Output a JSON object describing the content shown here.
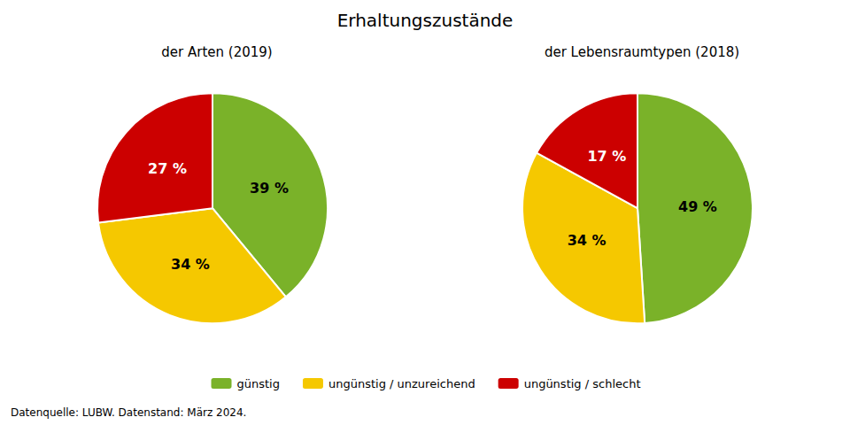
{
  "chart_data": [
    {
      "type": "pie",
      "title": "Erhaltungszustände",
      "subtitle": "der Arten (2019)",
      "categories": [
        "günstig",
        "ungünstig / unzureichend",
        "ungünstig / schlecht"
      ],
      "values": [
        39,
        34,
        27
      ],
      "value_labels": [
        "39 %",
        "34 %",
        "27 %"
      ],
      "colors": [
        "#7ab229",
        "#f5c800",
        "#cc0000"
      ],
      "data_labels": true,
      "legend": "bottom",
      "annotations": [
        "Datenquelle: LUBW. Datenstand: März 2024."
      ]
    },
    {
      "type": "pie",
      "subtitle": "der Lebensraumtypen (2018)",
      "categories": [
        "günstig",
        "ungünstig / unzureichend",
        "ungünstig / schlecht"
      ],
      "values": [
        49,
        34,
        17
      ],
      "value_labels": [
        "49 %",
        "34 %",
        "17 %"
      ],
      "colors": [
        "#7ab229",
        "#f5c800",
        "#cc0000"
      ],
      "data_labels": true
    }
  ]
}
